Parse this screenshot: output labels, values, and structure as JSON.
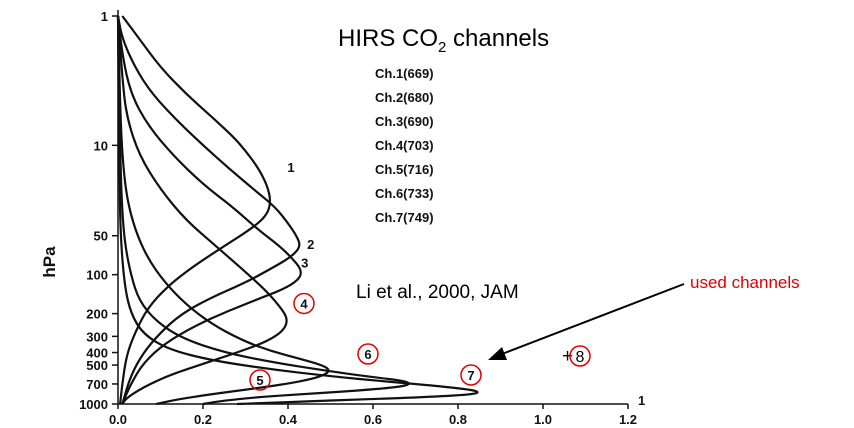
{
  "chart_data": {
    "type": "line",
    "title": "HIRS CO",
    "title_subscript": "2",
    "title_suffix": " channels",
    "ylabel": "hPa",
    "xlabel": "",
    "x_ticks": [
      "0.0",
      "0.2",
      "0.4",
      "0.6",
      "0.8",
      "1.0",
      "1.2"
    ],
    "y_ticks": [
      {
        "value": 1,
        "label": "1"
      },
      {
        "value": 10,
        "label": "10"
      },
      {
        "value": 50,
        "label": "50"
      },
      {
        "value": 100,
        "label": "100"
      },
      {
        "value": 200,
        "label": "200"
      },
      {
        "value": 300,
        "label": "300"
      },
      {
        "value": 400,
        "label": "400"
      },
      {
        "value": 500,
        "label": "500"
      },
      {
        "value": 700,
        "label": "700"
      },
      {
        "value": 1000,
        "label": "1000"
      }
    ],
    "xlim": [
      0,
      1.2
    ],
    "ylim": [
      1000,
      1
    ],
    "y_scale": "log",
    "channel_list": [
      "Ch.1(669)",
      "Ch.2(680)",
      "Ch.3(690)",
      "Ch.4(703)",
      "Ch.5(716)",
      "Ch.6(733)",
      "Ch.7(749)"
    ],
    "citation": "Li et al., 2000, JAM",
    "annotation": "used channels",
    "extra_channel": {
      "prefix": "+",
      "label": "8"
    },
    "corner_tick": "1",
    "series": [
      {
        "label": "1",
        "circled": false,
        "peak_x": 0.36,
        "peak_p": 30,
        "points": [
          [
            0.01,
            1
          ],
          [
            0.05,
            1.5
          ],
          [
            0.1,
            2.5
          ],
          [
            0.16,
            4
          ],
          [
            0.22,
            6
          ],
          [
            0.27,
            8.5
          ],
          [
            0.3,
            11
          ],
          [
            0.33,
            15
          ],
          [
            0.35,
            20
          ],
          [
            0.36,
            27
          ],
          [
            0.35,
            35
          ],
          [
            0.31,
            45
          ],
          [
            0.25,
            60
          ],
          [
            0.18,
            85
          ],
          [
            0.12,
            120
          ],
          [
            0.07,
            180
          ],
          [
            0.04,
            280
          ],
          [
            0.02,
            420
          ],
          [
            0.01,
            700
          ],
          [
            0.005,
            1000
          ]
        ]
      },
      {
        "label": "2",
        "circled": false,
        "peak_x": 0.43,
        "peak_p": 60,
        "points": [
          [
            0.0,
            1
          ],
          [
            0.01,
            1.5
          ],
          [
            0.04,
            2.5
          ],
          [
            0.08,
            4
          ],
          [
            0.14,
            6.5
          ],
          [
            0.2,
            10
          ],
          [
            0.26,
            15
          ],
          [
            0.32,
            22
          ],
          [
            0.37,
            30
          ],
          [
            0.4,
            40
          ],
          [
            0.42,
            50
          ],
          [
            0.43,
            60
          ],
          [
            0.41,
            72
          ],
          [
            0.36,
            90
          ],
          [
            0.3,
            115
          ],
          [
            0.22,
            150
          ],
          [
            0.15,
            200
          ],
          [
            0.1,
            280
          ],
          [
            0.06,
            400
          ],
          [
            0.03,
            600
          ],
          [
            0.01,
            1000
          ]
        ]
      },
      {
        "label": "3",
        "circled": false,
        "peak_x": 0.43,
        "peak_p": 100,
        "points": [
          [
            0.0,
            1
          ],
          [
            0.01,
            2
          ],
          [
            0.03,
            4
          ],
          [
            0.07,
            7
          ],
          [
            0.13,
            12
          ],
          [
            0.2,
            20
          ],
          [
            0.27,
            30
          ],
          [
            0.33,
            45
          ],
          [
            0.38,
            60
          ],
          [
            0.41,
            75
          ],
          [
            0.43,
            90
          ],
          [
            0.43,
            105
          ],
          [
            0.4,
            125
          ],
          [
            0.34,
            150
          ],
          [
            0.26,
            190
          ],
          [
            0.18,
            250
          ],
          [
            0.11,
            340
          ],
          [
            0.06,
            480
          ],
          [
            0.03,
            700
          ],
          [
            0.01,
            1000
          ]
        ]
      },
      {
        "label": "4",
        "circled": true,
        "peak_x": 0.4,
        "peak_p": 230,
        "points": [
          [
            0.0,
            1
          ],
          [
            0.01,
            3
          ],
          [
            0.02,
            6
          ],
          [
            0.05,
            12
          ],
          [
            0.1,
            22
          ],
          [
            0.16,
            38
          ],
          [
            0.23,
            60
          ],
          [
            0.3,
            95
          ],
          [
            0.35,
            135
          ],
          [
            0.38,
            175
          ],
          [
            0.4,
            220
          ],
          [
            0.39,
            270
          ],
          [
            0.35,
            330
          ],
          [
            0.28,
            400
          ],
          [
            0.2,
            490
          ],
          [
            0.12,
            600
          ],
          [
            0.06,
            740
          ],
          [
            0.02,
            900
          ],
          [
            0.01,
            1000
          ]
        ]
      },
      {
        "label": "5",
        "circled": true,
        "peak_x": 0.5,
        "peak_p": 520,
        "points": [
          [
            0.0,
            1
          ],
          [
            0.005,
            5
          ],
          [
            0.01,
            12
          ],
          [
            0.02,
            25
          ],
          [
            0.04,
            45
          ],
          [
            0.07,
            75
          ],
          [
            0.11,
            115
          ],
          [
            0.16,
            170
          ],
          [
            0.22,
            240
          ],
          [
            0.29,
            320
          ],
          [
            0.36,
            390
          ],
          [
            0.43,
            450
          ],
          [
            0.48,
            500
          ],
          [
            0.5,
            550
          ],
          [
            0.48,
            610
          ],
          [
            0.42,
            680
          ],
          [
            0.32,
            760
          ],
          [
            0.22,
            840
          ],
          [
            0.14,
            920
          ],
          [
            0.09,
            1000
          ]
        ]
      },
      {
        "label": "6",
        "circled": true,
        "peak_x": 0.69,
        "peak_p": 680,
        "points": [
          [
            0.0,
            1
          ],
          [
            0.004,
            8
          ],
          [
            0.008,
            25
          ],
          [
            0.015,
            55
          ],
          [
            0.03,
            100
          ],
          [
            0.05,
            160
          ],
          [
            0.09,
            230
          ],
          [
            0.15,
            310
          ],
          [
            0.25,
            400
          ],
          [
            0.37,
            480
          ],
          [
            0.5,
            560
          ],
          [
            0.6,
            620
          ],
          [
            0.67,
            660
          ],
          [
            0.69,
            700
          ],
          [
            0.66,
            740
          ],
          [
            0.56,
            790
          ],
          [
            0.43,
            840
          ],
          [
            0.32,
            890
          ],
          [
            0.24,
            950
          ],
          [
            0.2,
            1000
          ]
        ]
      },
      {
        "label": "7",
        "circled": true,
        "peak_x": 0.85,
        "peak_p": 790,
        "points": [
          [
            0.0,
            1
          ],
          [
            0.003,
            15
          ],
          [
            0.006,
            50
          ],
          [
            0.015,
            120
          ],
          [
            0.03,
            200
          ],
          [
            0.06,
            290
          ],
          [
            0.12,
            380
          ],
          [
            0.22,
            460
          ],
          [
            0.36,
            540
          ],
          [
            0.5,
            610
          ],
          [
            0.63,
            670
          ],
          [
            0.74,
            720
          ],
          [
            0.81,
            760
          ],
          [
            0.85,
            800
          ],
          [
            0.84,
            840
          ],
          [
            0.74,
            880
          ],
          [
            0.58,
            920
          ],
          [
            0.42,
            960
          ],
          [
            0.32,
            990
          ],
          [
            0.28,
            1000
          ]
        ]
      }
    ]
  }
}
